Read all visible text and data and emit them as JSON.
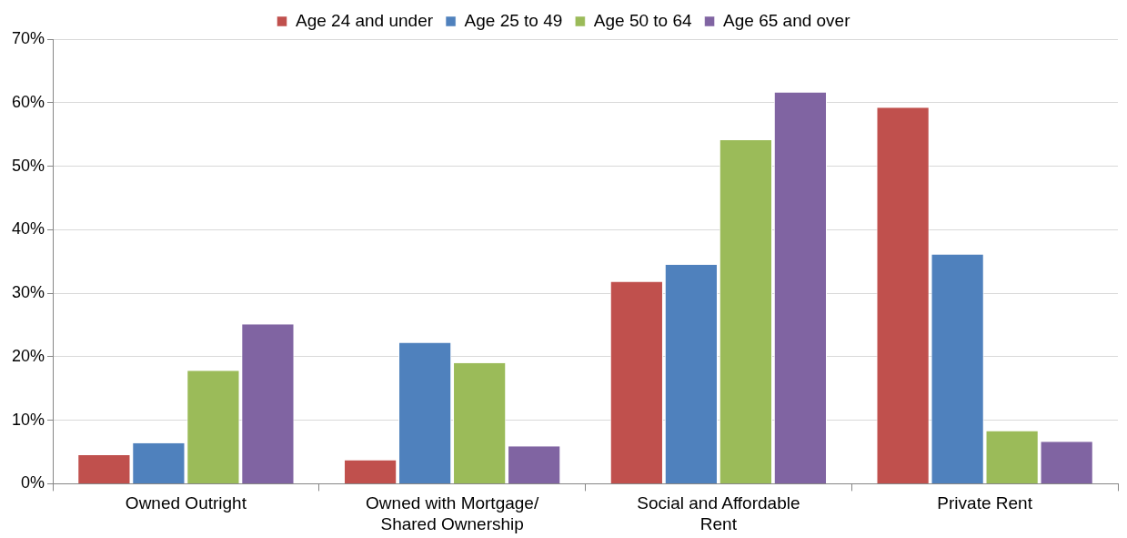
{
  "chart_data": {
    "type": "bar",
    "categories": [
      "Owned Outright",
      "Owned with Mortgage/ Shared Ownership",
      "Social and Affordable Rent",
      "Private Rent"
    ],
    "series": [
      {
        "name": "Age 24 and under",
        "color": "#c0504d",
        "values": [
          4.5,
          3.7,
          31.8,
          59.2
        ]
      },
      {
        "name": "Age 25 to 49",
        "color": "#4f81bd",
        "values": [
          6.4,
          22.2,
          34.5,
          36.1
        ]
      },
      {
        "name": "Age 50 to 64",
        "color": "#9bbb59",
        "values": [
          17.8,
          19.0,
          54.1,
          8.3
        ]
      },
      {
        "name": "Age 65 and over",
        "color": "#8064a2",
        "values": [
          25.1,
          5.9,
          61.6,
          6.6
        ]
      }
    ],
    "ylim": [
      0,
      70
    ],
    "yticks": [
      {
        "value": 0,
        "label": "0%"
      },
      {
        "value": 10,
        "label": "10%"
      },
      {
        "value": 20,
        "label": "20%"
      },
      {
        "value": 30,
        "label": "30%"
      },
      {
        "value": 40,
        "label": "40%"
      },
      {
        "value": 50,
        "label": "50%"
      },
      {
        "value": 60,
        "label": "60%"
      },
      {
        "value": 70,
        "label": "70%"
      }
    ],
    "grid": "y",
    "legend": "top"
  }
}
